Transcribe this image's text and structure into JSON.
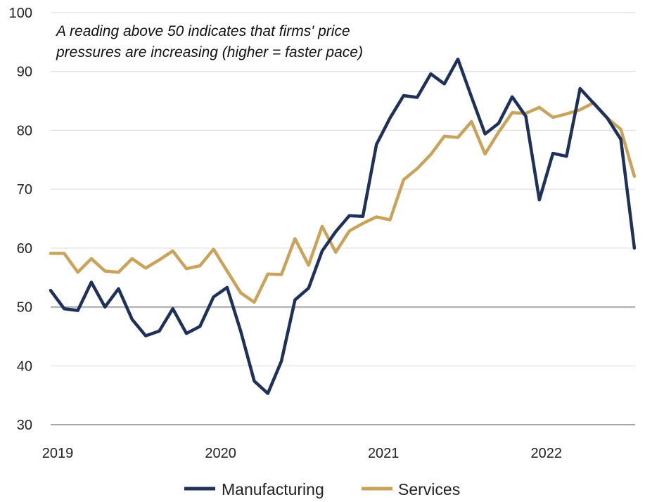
{
  "chart_data": {
    "type": "line",
    "title": "",
    "xlabel": "",
    "ylabel": "",
    "ylim": [
      30,
      100
    ],
    "yticks": [
      30,
      40,
      50,
      60,
      70,
      80,
      90,
      100
    ],
    "x_tick_labels": [
      "2019",
      "2020",
      "2021",
      "2022"
    ],
    "x_start": "2019-01",
    "x_end": "2022-07",
    "reference_line": 50,
    "grid": true,
    "legend_position": "bottom",
    "annotation": [
      "A reading above 50 indicates that firms' price",
      "pressures are increasing (higher  = faster pace)"
    ],
    "series": [
      {
        "name": "Manufacturing",
        "color": "#1f3158",
        "values": [
          52.8,
          49.7,
          49.4,
          54.2,
          50.0,
          53.1,
          47.9,
          45.1,
          45.9,
          49.7,
          45.5,
          46.7,
          51.7,
          53.3,
          45.9,
          37.4,
          35.3,
          40.8,
          51.2,
          53.2,
          59.5,
          62.8,
          65.5,
          65.4,
          77.6,
          82.1,
          85.9,
          85.6,
          89.6,
          87.9,
          92.1,
          85.7,
          79.4,
          81.2,
          85.7,
          82.4,
          68.2,
          76.1,
          75.6,
          87.1,
          84.6,
          82.1,
          78.5,
          60.0
        ]
      },
      {
        "name": "Services",
        "color": "#c9a35a",
        "values": [
          59.1,
          59.1,
          55.9,
          58.2,
          56.1,
          55.9,
          58.2,
          56.6,
          58.0,
          59.5,
          56.5,
          57.0,
          59.8,
          56.1,
          52.4,
          50.8,
          55.6,
          55.5,
          61.6,
          57.1,
          63.7,
          59.3,
          62.9,
          64.2,
          65.3,
          64.8,
          71.6,
          73.5,
          75.9,
          79.0,
          78.8,
          81.5,
          76.0,
          79.7,
          83.0,
          82.9,
          83.9,
          82.2,
          82.8,
          83.5,
          84.7,
          82.1,
          80.2,
          72.2
        ]
      }
    ]
  }
}
